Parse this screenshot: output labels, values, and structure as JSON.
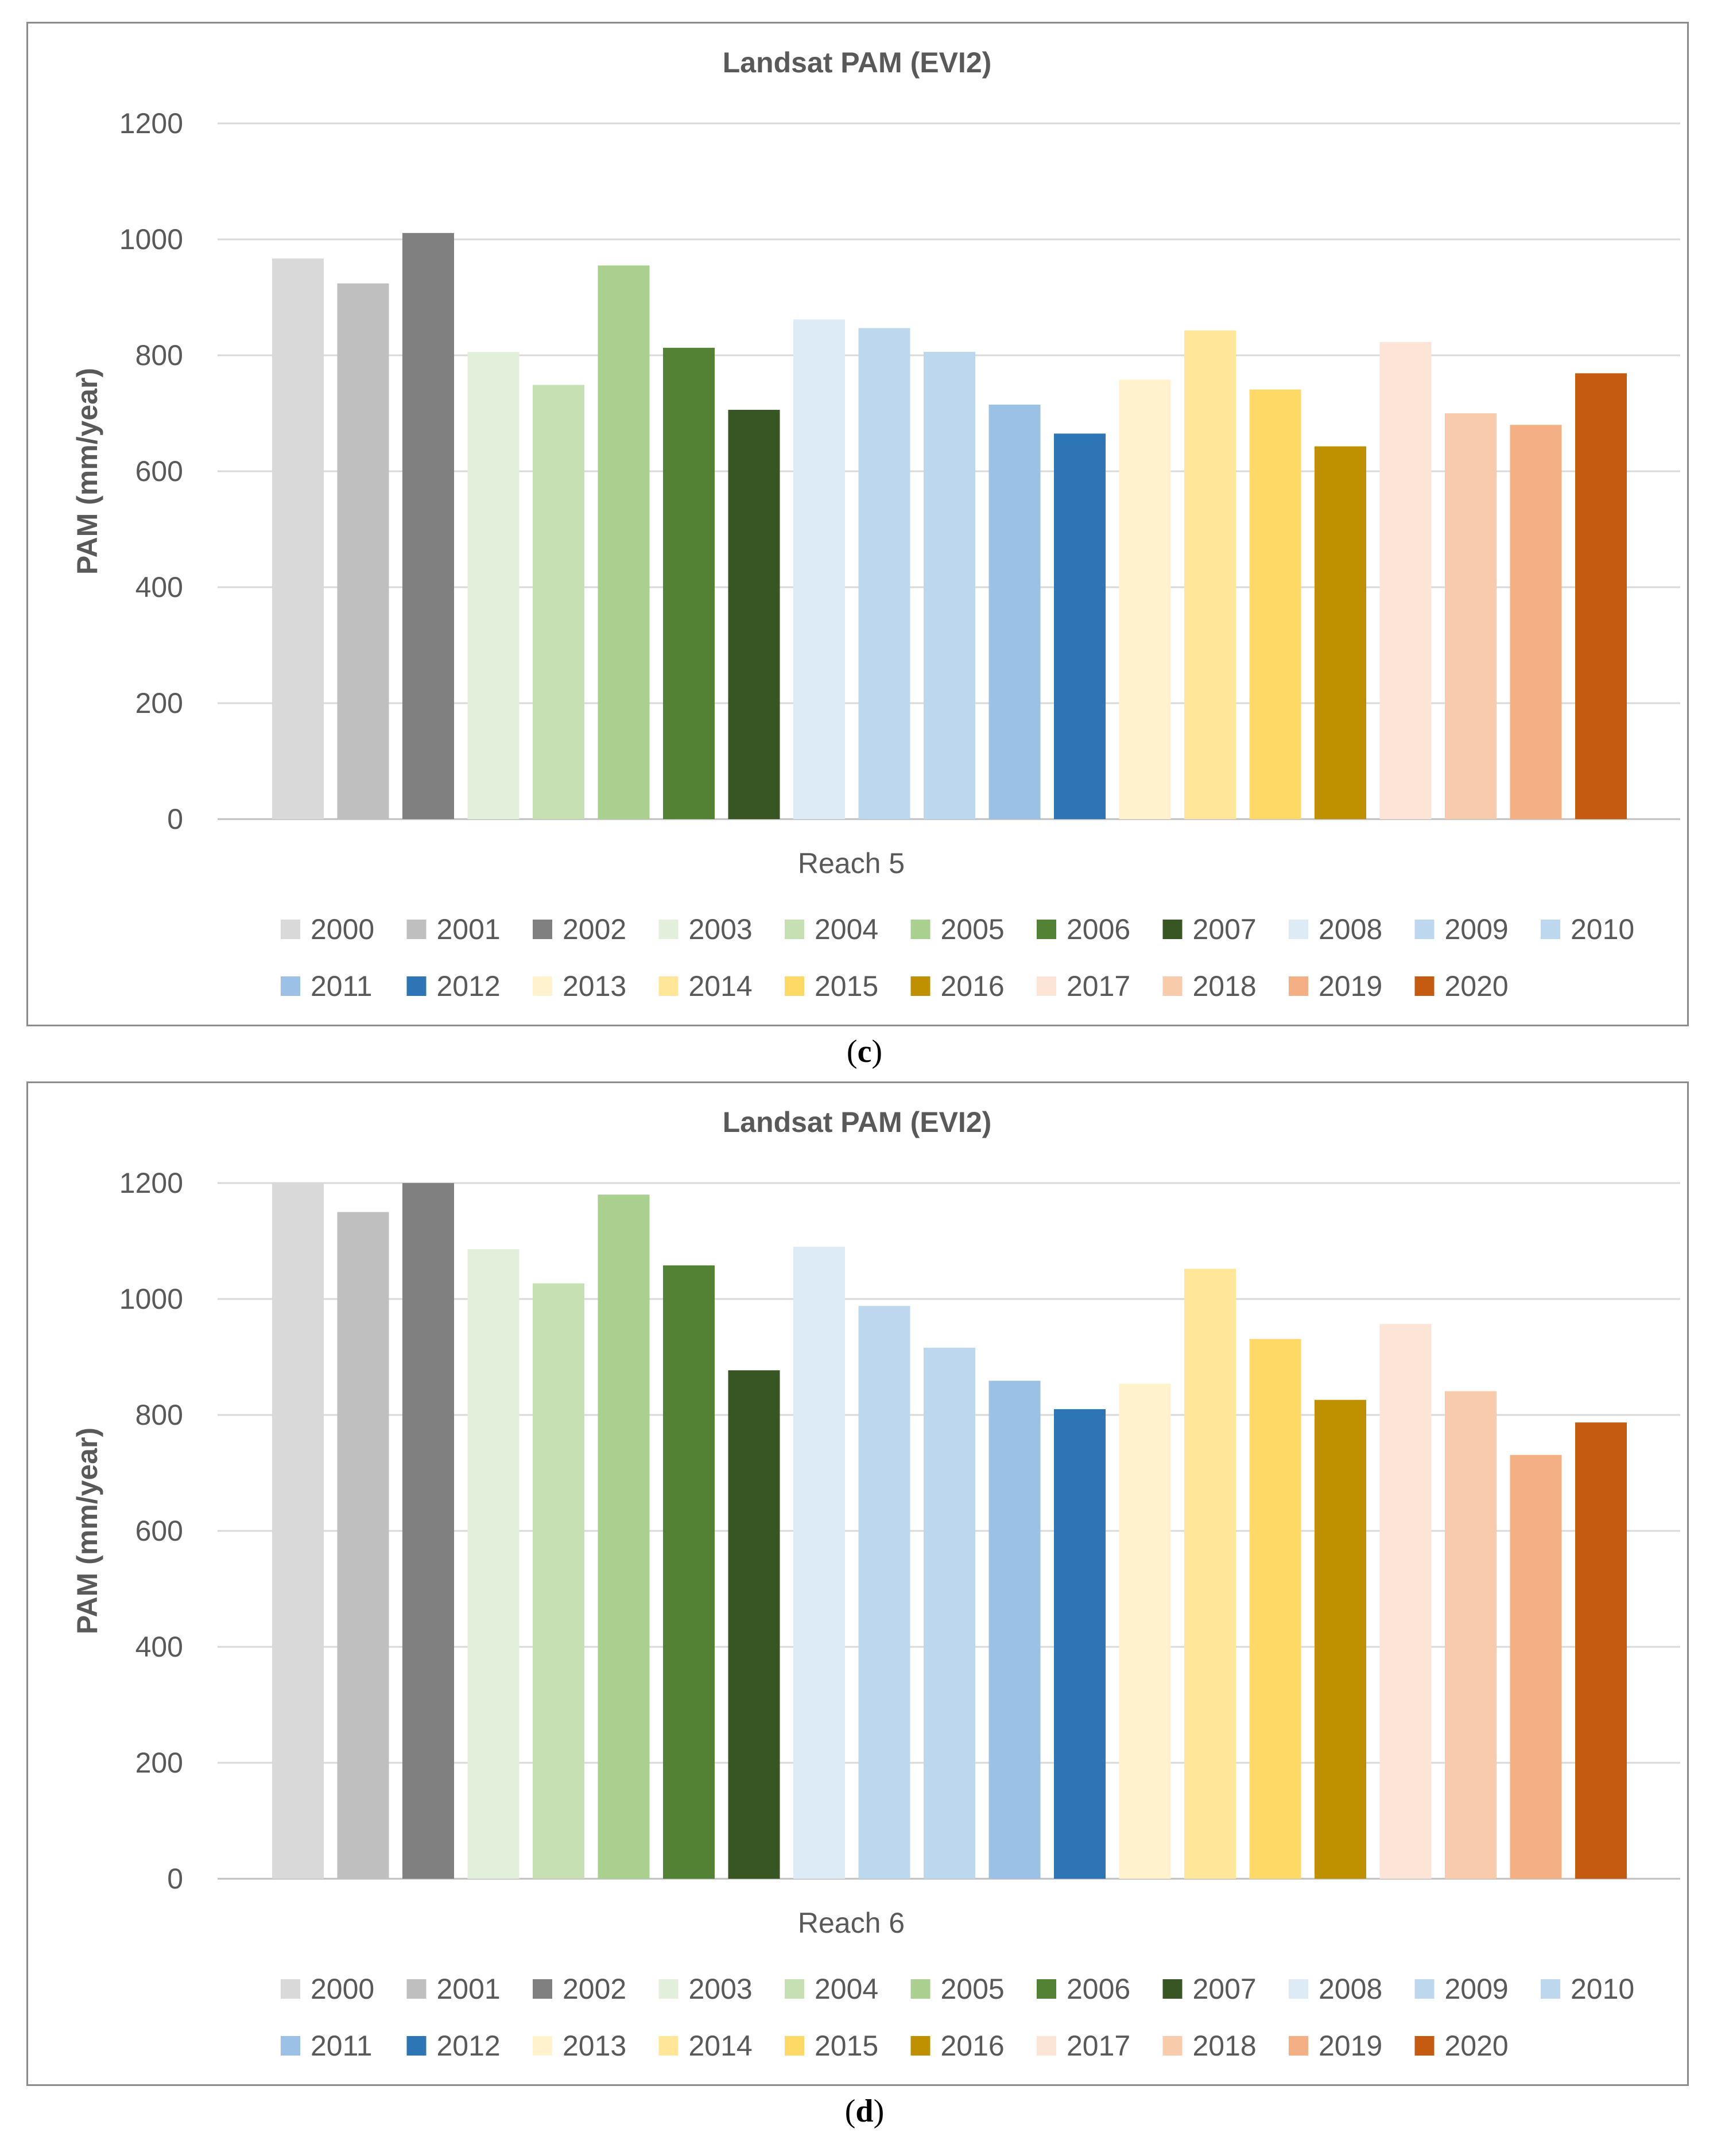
{
  "chart_data": [
    {
      "type": "bar",
      "title": "Landsat PAM (EVI2)",
      "xlabel": "",
      "ylabel": "PAM (mm/year)",
      "ylim": [
        0,
        1200
      ],
      "yticks": [
        0,
        200,
        400,
        600,
        800,
        1000,
        1200
      ],
      "grid": true,
      "legend_position": "bottom",
      "categories": [
        "Reach 5"
      ],
      "series": [
        {
          "name": "2000",
          "values": [
            967
          ],
          "color": "#d9d9d9"
        },
        {
          "name": "2001",
          "values": [
            924
          ],
          "color": "#bfbfbf"
        },
        {
          "name": "2002",
          "values": [
            1011
          ],
          "color": "#808080"
        },
        {
          "name": "2003",
          "values": [
            806
          ],
          "color": "#e2efda"
        },
        {
          "name": "2004",
          "values": [
            749
          ],
          "color": "#c6e0b4"
        },
        {
          "name": "2005",
          "values": [
            955
          ],
          "color": "#a9d08e"
        },
        {
          "name": "2006",
          "values": [
            813
          ],
          "color": "#548235"
        },
        {
          "name": "2007",
          "values": [
            706
          ],
          "color": "#375623"
        },
        {
          "name": "2008",
          "values": [
            862
          ],
          "color": "#ddebf7"
        },
        {
          "name": "2009",
          "values": [
            847
          ],
          "color": "#bdd7ee"
        },
        {
          "name": "2010",
          "values": [
            806
          ],
          "color": "#bdd7ee"
        },
        {
          "name": "2011",
          "values": [
            715
          ],
          "color": "#9bc2e6"
        },
        {
          "name": "2012",
          "values": [
            665
          ],
          "color": "#2e75b6"
        },
        {
          "name": "2013",
          "values": [
            758
          ],
          "color": "#fff2cc"
        },
        {
          "name": "2014",
          "values": [
            843
          ],
          "color": "#ffe699"
        },
        {
          "name": "2015",
          "values": [
            741
          ],
          "color": "#ffd966"
        },
        {
          "name": "2016",
          "values": [
            643
          ],
          "color": "#bf9000"
        },
        {
          "name": "2017",
          "values": [
            823
          ],
          "color": "#fce4d6"
        },
        {
          "name": "2018",
          "values": [
            700
          ],
          "color": "#f8cbad"
        },
        {
          "name": "2019",
          "values": [
            680
          ],
          "color": "#f4b084"
        },
        {
          "name": "2020",
          "values": [
            769
          ],
          "color": "#c55a11"
        }
      ]
    },
    {
      "type": "bar",
      "title": "Landsat PAM (EVI2)",
      "xlabel": "",
      "ylabel": "PAM (mm/year)",
      "ylim": [
        0,
        1200
      ],
      "yticks": [
        0,
        200,
        400,
        600,
        800,
        1000,
        1200
      ],
      "grid": true,
      "legend_position": "bottom",
      "categories": [
        "Reach 6"
      ],
      "series": [
        {
          "name": "2000",
          "values": [
            1200
          ],
          "color": "#d9d9d9"
        },
        {
          "name": "2001",
          "values": [
            1150
          ],
          "color": "#bfbfbf"
        },
        {
          "name": "2002",
          "values": [
            1200
          ],
          "color": "#808080"
        },
        {
          "name": "2003",
          "values": [
            1086
          ],
          "color": "#e2efda"
        },
        {
          "name": "2004",
          "values": [
            1027
          ],
          "color": "#c6e0b4"
        },
        {
          "name": "2005",
          "values": [
            1180
          ],
          "color": "#a9d08e"
        },
        {
          "name": "2006",
          "values": [
            1058
          ],
          "color": "#548235"
        },
        {
          "name": "2007",
          "values": [
            877
          ],
          "color": "#375623"
        },
        {
          "name": "2008",
          "values": [
            1090
          ],
          "color": "#ddebf7"
        },
        {
          "name": "2009",
          "values": [
            988
          ],
          "color": "#bdd7ee"
        },
        {
          "name": "2010",
          "values": [
            916
          ],
          "color": "#bdd7ee"
        },
        {
          "name": "2011",
          "values": [
            859
          ],
          "color": "#9bc2e6"
        },
        {
          "name": "2012",
          "values": [
            810
          ],
          "color": "#2e75b6"
        },
        {
          "name": "2013",
          "values": [
            854
          ],
          "color": "#fff2cc"
        },
        {
          "name": "2014",
          "values": [
            1052
          ],
          "color": "#ffe699"
        },
        {
          "name": "2015",
          "values": [
            931
          ],
          "color": "#ffd966"
        },
        {
          "name": "2016",
          "values": [
            826
          ],
          "color": "#bf9000"
        },
        {
          "name": "2017",
          "values": [
            957
          ],
          "color": "#fce4d6"
        },
        {
          "name": "2018",
          "values": [
            841
          ],
          "color": "#f8cbad"
        },
        {
          "name": "2019",
          "values": [
            731
          ],
          "color": "#f4b084"
        },
        {
          "name": "2020",
          "values": [
            787
          ],
          "color": "#c55a11"
        }
      ]
    }
  ],
  "captions": {
    "c": "c",
    "d": "d"
  }
}
